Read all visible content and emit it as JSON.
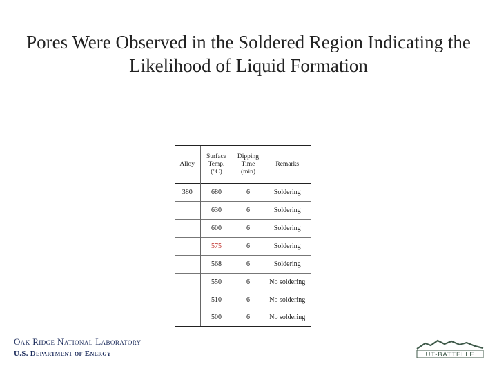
{
  "slide": {
    "title": "Pores Were Observed in the Soldered Region Indicating the Likelihood of Liquid Formation"
  },
  "table": {
    "headers": [
      {
        "lines": [
          "Alloy"
        ]
      },
      {
        "lines": [
          "Surface",
          "Temp.",
          "(°C)"
        ]
      },
      {
        "lines": [
          "Dipping",
          "Time",
          "(min)"
        ]
      },
      {
        "lines": [
          "Remarks"
        ]
      }
    ],
    "rows": [
      {
        "alloy": "380",
        "temp": "680",
        "time": "6",
        "remarks": "Soldering"
      },
      {
        "alloy": "",
        "temp": "630",
        "time": "6",
        "remarks": "Soldering"
      },
      {
        "alloy": "",
        "temp": "600",
        "time": "6",
        "remarks": "Soldering"
      },
      {
        "alloy": "",
        "temp": "575",
        "time": "6",
        "remarks": "Soldering",
        "highlight_color": "#c0302a"
      },
      {
        "alloy": "",
        "temp": "568",
        "time": "6",
        "remarks": "Soldering"
      },
      {
        "alloy": "",
        "temp": "550",
        "time": "6",
        "remarks": "No soldering"
      },
      {
        "alloy": "",
        "temp": "510",
        "time": "6",
        "remarks": "No soldering"
      },
      {
        "alloy": "",
        "temp": "500",
        "time": "6",
        "remarks": "No soldering"
      }
    ]
  },
  "footer": {
    "org_line1": "Oak Ridge National Laboratory",
    "org_line2": "U.S. Department of Energy",
    "logo_text": "UT-BATTELLE",
    "logo_color": "#3f5a4a",
    "org_color": "#1a2a5a"
  }
}
